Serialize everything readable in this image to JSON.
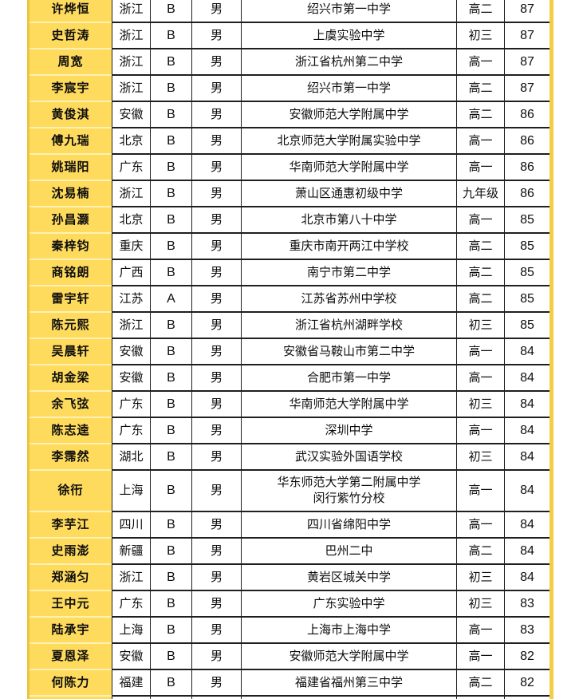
{
  "page": {
    "background": "#ffffff",
    "accent_color": "#ecc53e",
    "name_column_color": "#ffdb5d",
    "name_separator_color": "#fdf1b5",
    "grid_border_color": "#1f1f1f"
  },
  "table": {
    "columns": [
      "name",
      "province",
      "level",
      "gender",
      "school",
      "grade",
      "score"
    ],
    "rows": [
      {
        "name": "许烨恒",
        "province": "浙江",
        "level": "B",
        "gender": "男",
        "school": "绍兴市第一中学",
        "grade": "高二",
        "score": "87"
      },
      {
        "name": "史哲涛",
        "province": "浙江",
        "level": "B",
        "gender": "男",
        "school": "上虞实验中学",
        "grade": "初三",
        "score": "87"
      },
      {
        "name": "周宽",
        "province": "浙江",
        "level": "B",
        "gender": "男",
        "school": "浙江省杭州第二中学",
        "grade": "高一",
        "score": "87"
      },
      {
        "name": "李宸宇",
        "province": "浙江",
        "level": "B",
        "gender": "男",
        "school": "绍兴市第一中学",
        "grade": "高二",
        "score": "87"
      },
      {
        "name": "黄俊淇",
        "province": "安徽",
        "level": "B",
        "gender": "男",
        "school": "安徽师范大学附属中学",
        "grade": "高二",
        "score": "86"
      },
      {
        "name": "傅九瑞",
        "province": "北京",
        "level": "B",
        "gender": "男",
        "school": "北京师范大学附属实验中学",
        "grade": "高一",
        "score": "86"
      },
      {
        "name": "姚瑞阳",
        "province": "广东",
        "level": "B",
        "gender": "男",
        "school": "华南师范大学附属中学",
        "grade": "高一",
        "score": "86"
      },
      {
        "name": "沈易楠",
        "province": "浙江",
        "level": "B",
        "gender": "男",
        "school": "萧山区通惠初级中学",
        "grade": "九年级",
        "score": "86"
      },
      {
        "name": "孙昌灏",
        "province": "北京",
        "level": "B",
        "gender": "男",
        "school": "北京市第八十中学",
        "grade": "高一",
        "score": "85"
      },
      {
        "name": "秦梓钧",
        "province": "重庆",
        "level": "B",
        "gender": "男",
        "school": "重庆市南开两江中学校",
        "grade": "高二",
        "score": "85"
      },
      {
        "name": "商铭朗",
        "province": "广西",
        "level": "B",
        "gender": "男",
        "school": "南宁市第二中学",
        "grade": "高二",
        "score": "85"
      },
      {
        "name": "雷宇轩",
        "province": "江苏",
        "level": "A",
        "gender": "男",
        "school": "江苏省苏州中学校",
        "grade": "高二",
        "score": "85"
      },
      {
        "name": "陈元熙",
        "province": "浙江",
        "level": "B",
        "gender": "男",
        "school": "浙江省杭州湖畔学校",
        "grade": "初三",
        "score": "85"
      },
      {
        "name": "吴晨轩",
        "province": "安徽",
        "level": "B",
        "gender": "男",
        "school": "安徽省马鞍山市第二中学",
        "grade": "高一",
        "score": "84"
      },
      {
        "name": "胡金梁",
        "province": "安徽",
        "level": "B",
        "gender": "男",
        "school": "合肥市第一中学",
        "grade": "高一",
        "score": "84"
      },
      {
        "name": "余飞弦",
        "province": "广东",
        "level": "B",
        "gender": "男",
        "school": "华南师范大学附属中学",
        "grade": "初三",
        "score": "84"
      },
      {
        "name": "陈志逵",
        "province": "广东",
        "level": "B",
        "gender": "男",
        "school": "深圳中学",
        "grade": "高一",
        "score": "84"
      },
      {
        "name": "李霈然",
        "province": "湖北",
        "level": "B",
        "gender": "男",
        "school": "武汉实验外国语学校",
        "grade": "初三",
        "score": "84"
      },
      {
        "name": "徐衎",
        "province": "上海",
        "level": "B",
        "gender": "男",
        "school": "华东师范大学第二附属中学",
        "school_line2": "闵行紫竹分校",
        "grade": "高一",
        "score": "84",
        "tall": true
      },
      {
        "name": "李芋江",
        "province": "四川",
        "level": "B",
        "gender": "男",
        "school": "四川省绵阳中学",
        "grade": "高一",
        "score": "84"
      },
      {
        "name": "史雨澎",
        "province": "新疆",
        "level": "B",
        "gender": "男",
        "school": "巴州二中",
        "grade": "高二",
        "score": "84"
      },
      {
        "name": "郑涵匀",
        "province": "浙江",
        "level": "B",
        "gender": "男",
        "school": "黄岩区城关中学",
        "grade": "初三",
        "score": "84"
      },
      {
        "name": "王中元",
        "province": "广东",
        "level": "B",
        "gender": "男",
        "school": "广东实验中学",
        "grade": "初三",
        "score": "83"
      },
      {
        "name": "陆承宇",
        "province": "上海",
        "level": "B",
        "gender": "男",
        "school": "上海市上海中学",
        "grade": "高一",
        "score": "83"
      },
      {
        "name": "夏恩泽",
        "province": "安徽",
        "level": "B",
        "gender": "男",
        "school": "安徽师范大学附属中学",
        "grade": "高一",
        "score": "82"
      },
      {
        "name": "何陈力",
        "province": "福建",
        "level": "B",
        "gender": "男",
        "school": "福建省福州第三中学",
        "grade": "高二",
        "score": "82"
      },
      {
        "name": "",
        "province": "",
        "level": "",
        "gender": "",
        "school": "",
        "grade": "",
        "score": "",
        "partial": true
      }
    ]
  }
}
